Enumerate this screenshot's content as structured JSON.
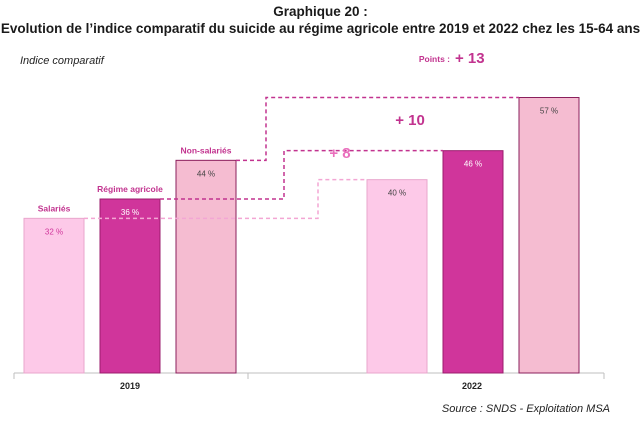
{
  "chart_data": {
    "type": "bar",
    "title": "Graphique 20 :",
    "subtitle": "Evolution de l’indice comparatif du suicide au régime agricole entre 2019 et 2022 chez les 15-64 ans",
    "ylabel": "Indice comparatif",
    "categories": [
      "2019",
      "2022"
    ],
    "series": [
      {
        "name": "Salariés",
        "values": [
          32,
          40
        ],
        "labels": [
          "32 %",
          "40 %"
        ],
        "color": "#fdc9e8",
        "stroke": "#e9a6cd"
      },
      {
        "name": "Régime agricole",
        "values": [
          36,
          46
        ],
        "labels": [
          "36 %",
          "46 %"
        ],
        "color": "#d0359b",
        "stroke": "#9b1c6e"
      },
      {
        "name": "Non-salariés",
        "values": [
          44,
          57
        ],
        "labels": [
          "44 %",
          "57 %"
        ],
        "color": "#f5bcd1",
        "stroke": "#8a1f5c"
      }
    ],
    "ylim": [
      0,
      60
    ],
    "grid": false,
    "annotations": [
      {
        "prefix": "",
        "text": "+ 8",
        "series": "Salariés",
        "color": "#ea6fbd"
      },
      {
        "prefix": "",
        "text": "+ 10",
        "series": "Régime agricole",
        "color": "#c2338f"
      },
      {
        "prefix": "Points : ",
        "text": "+ 13",
        "series": "Non-salariés",
        "color": "#c2338f"
      }
    ],
    "source": "Source : SNDS - Exploitation MSA"
  }
}
